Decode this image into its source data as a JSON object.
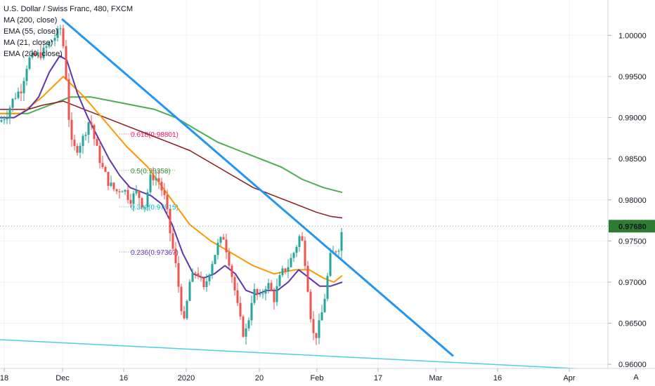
{
  "legend": {
    "title": "U.S. Dollar / Swiss Franc, 480, FXCM",
    "ma200": "MA (200, close)",
    "ema55": "EMA (55, close)",
    "ma21": "MA (21, close)",
    "ema200": "EMA (200, close)"
  },
  "price_badge": "0.97680",
  "corner_label": "A",
  "colors": {
    "up": "#26a69a",
    "down": "#ef5350",
    "ma200": "#8b1a1a",
    "ema55": "#ff9800",
    "ma21": "#5e35b1",
    "ema200": "#4caf50",
    "trendline": "#2196f3",
    "support": "#4dd0e1",
    "badge": "#2e7d32"
  },
  "chart_data": {
    "type": "candlestick",
    "ylim": [
      0.9595,
      1.0043
    ],
    "y_ticks": [
      "1.00000",
      "0.99500",
      "0.99000",
      "0.98500",
      "0.98000",
      "0.97500",
      "0.97000",
      "0.96500",
      "0.96000"
    ],
    "x_ticks": [
      "18",
      "Dec",
      "16",
      "2020",
      "20",
      "Feb",
      "17",
      "Mar",
      "16",
      "Apr"
    ],
    "last_price": 0.9768,
    "fib_levels": [
      {
        "label": "0.618(0.98801)",
        "value": 0.98801,
        "color": "#e91e63"
      },
      {
        "label": "0.5(0.98358)",
        "value": 0.98358,
        "color": "#388e3c"
      },
      {
        "label": "0.382(0.97915)",
        "value": 0.97915,
        "color": "#00bcd4"
      },
      {
        "label": "0.236(0.97367)",
        "value": 0.97367,
        "color": "#673ab7"
      }
    ],
    "close_path": [
      [
        0,
        0.9895
      ],
      [
        10,
        0.9905
      ],
      [
        20,
        0.9925
      ],
      [
        30,
        0.9935
      ],
      [
        40,
        0.997
      ],
      [
        50,
        0.9975
      ],
      [
        60,
        0.9978
      ],
      [
        70,
        0.999
      ],
      [
        80,
        1.0
      ],
      [
        87,
        1.001
      ],
      [
        91,
        0.998
      ],
      [
        96,
        0.993
      ],
      [
        100,
        0.987
      ],
      [
        108,
        0.986
      ],
      [
        118,
        0.9875
      ],
      [
        128,
        0.99
      ],
      [
        135,
        0.987
      ],
      [
        145,
        0.984
      ],
      [
        155,
        0.982
      ],
      [
        165,
        0.981
      ],
      [
        175,
        0.9815
      ],
      [
        185,
        0.98
      ],
      [
        195,
        0.981
      ],
      [
        205,
        0.979
      ],
      [
        215,
        0.983
      ],
      [
        225,
        0.9825
      ],
      [
        235,
        0.98
      ],
      [
        242,
        0.976
      ],
      [
        250,
        0.972
      ],
      [
        258,
        0.967
      ],
      [
        262,
        0.965
      ],
      [
        270,
        0.97
      ],
      [
        280,
        0.9715
      ],
      [
        290,
        0.969
      ],
      [
        300,
        0.972
      ],
      [
        310,
        0.9745
      ],
      [
        318,
        0.9755
      ],
      [
        325,
        0.973
      ],
      [
        333,
        0.9695
      ],
      [
        340,
        0.966
      ],
      [
        347,
        0.9635
      ],
      [
        352,
        0.9645
      ],
      [
        360,
        0.969
      ],
      [
        370,
        0.968
      ],
      [
        380,
        0.97
      ],
      [
        390,
        0.968
      ],
      [
        400,
        0.971
      ],
      [
        410,
        0.972
      ],
      [
        420,
        0.974
      ],
      [
        428,
        0.976
      ],
      [
        435,
        0.972
      ],
      [
        442,
        0.966
      ],
      [
        447,
        0.963
      ],
      [
        452,
        0.964
      ],
      [
        460,
        0.967
      ],
      [
        465,
        0.97
      ],
      [
        470,
        0.973
      ],
      [
        478,
        0.974
      ],
      [
        484,
        0.9745
      ],
      [
        487,
        0.9768
      ]
    ],
    "ma200": [
      [
        0,
        0.991
      ],
      [
        40,
        0.991
      ],
      [
        60,
        0.9915
      ],
      [
        90,
        0.992
      ],
      [
        120,
        0.991
      ],
      [
        150,
        0.99
      ],
      [
        180,
        0.989
      ],
      [
        210,
        0.988
      ],
      [
        240,
        0.987
      ],
      [
        270,
        0.986
      ],
      [
        300,
        0.9845
      ],
      [
        330,
        0.983
      ],
      [
        360,
        0.9815
      ],
      [
        390,
        0.9805
      ],
      [
        420,
        0.9795
      ],
      [
        450,
        0.9785
      ],
      [
        470,
        0.978
      ],
      [
        487,
        0.9778
      ]
    ],
    "ema55": [
      [
        0,
        0.9905
      ],
      [
        30,
        0.9905
      ],
      [
        60,
        0.9925
      ],
      [
        90,
        0.995
      ],
      [
        120,
        0.9925
      ],
      [
        150,
        0.9895
      ],
      [
        180,
        0.9865
      ],
      [
        210,
        0.984
      ],
      [
        240,
        0.9805
      ],
      [
        270,
        0.977
      ],
      [
        300,
        0.975
      ],
      [
        330,
        0.9735
      ],
      [
        360,
        0.972
      ],
      [
        390,
        0.971
      ],
      [
        420,
        0.9715
      ],
      [
        440,
        0.9715
      ],
      [
        460,
        0.9705
      ],
      [
        475,
        0.97
      ],
      [
        487,
        0.9708
      ]
    ],
    "ma21": [
      [
        0,
        0.99
      ],
      [
        20,
        0.99
      ],
      [
        40,
        0.991
      ],
      [
        55,
        0.9925
      ],
      [
        70,
        0.9955
      ],
      [
        85,
        0.9975
      ],
      [
        95,
        0.997
      ],
      [
        110,
        0.993
      ],
      [
        125,
        0.99
      ],
      [
        140,
        0.9875
      ],
      [
        155,
        0.985
      ],
      [
        170,
        0.983
      ],
      [
        185,
        0.9815
      ],
      [
        200,
        0.981
      ],
      [
        215,
        0.9805
      ],
      [
        230,
        0.9795
      ],
      [
        245,
        0.977
      ],
      [
        260,
        0.9735
      ],
      [
        275,
        0.971
      ],
      [
        290,
        0.9705
      ],
      [
        305,
        0.971
      ],
      [
        320,
        0.972
      ],
      [
        335,
        0.971
      ],
      [
        350,
        0.969
      ],
      [
        365,
        0.9685
      ],
      [
        380,
        0.969
      ],
      [
        395,
        0.969
      ],
      [
        410,
        0.97
      ],
      [
        425,
        0.9715
      ],
      [
        440,
        0.9705
      ],
      [
        455,
        0.9695
      ],
      [
        470,
        0.9695
      ],
      [
        487,
        0.97
      ]
    ],
    "ema200": [
      [
        0,
        0.9905
      ],
      [
        40,
        0.9905
      ],
      [
        70,
        0.9915
      ],
      [
        100,
        0.9925
      ],
      [
        130,
        0.9925
      ],
      [
        160,
        0.992
      ],
      [
        190,
        0.9915
      ],
      [
        220,
        0.991
      ],
      [
        250,
        0.99
      ],
      [
        280,
        0.9885
      ],
      [
        310,
        0.987
      ],
      [
        340,
        0.986
      ],
      [
        370,
        0.985
      ],
      [
        400,
        0.984
      ],
      [
        430,
        0.9825
      ],
      [
        460,
        0.9815
      ],
      [
        487,
        0.9809
      ]
    ],
    "trendline": [
      [
        88,
        1.002
      ],
      [
        645,
        0.961
      ]
    ],
    "support_line": [
      [
        0,
        0.963
      ],
      [
        932,
        0.959
      ]
    ]
  }
}
